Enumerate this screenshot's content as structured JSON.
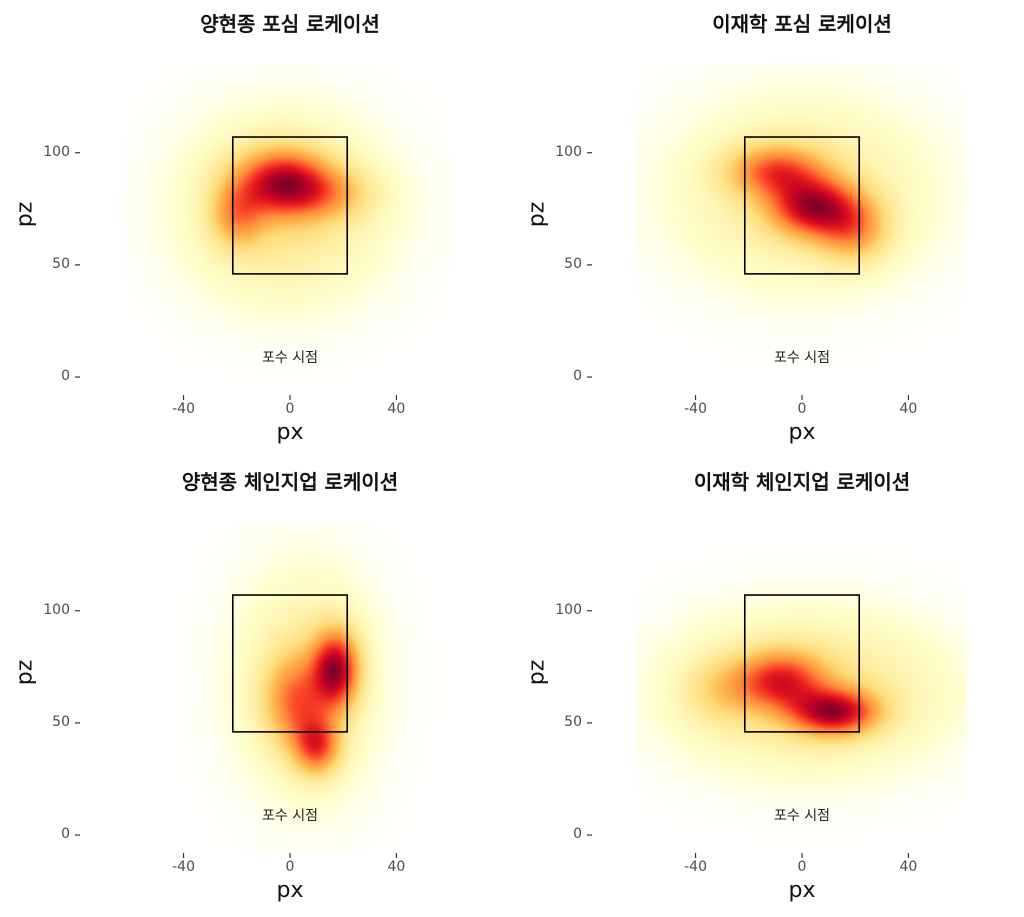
{
  "chart_data": [
    {
      "type": "heatmap",
      "title": "양현종 포심 로케이션",
      "xlabel": "px",
      "ylabel": "pz",
      "xticks": [
        -40,
        0,
        40
      ],
      "yticks": [
        0,
        50,
        100
      ],
      "xlim": [
        -62,
        62
      ],
      "ylim": [
        -8,
        140
      ],
      "annotation": {
        "text": "포수 시점",
        "x": 0,
        "y": 5
      },
      "strike_zone": {
        "x": [
          -21.5,
          21.5
        ],
        "y": [
          46,
          107
        ]
      },
      "colormap": [
        "#ffffcc",
        "#ffeda0",
        "#fed976",
        "#feb24c",
        "#fd8d3c",
        "#fc4e2a",
        "#e31a1c",
        "#bd0026",
        "#800026"
      ],
      "grid": false,
      "density_peaks": [
        {
          "x": -3,
          "y": 87,
          "sx": 12,
          "sy": 10,
          "w": 1
        },
        {
          "x": -20,
          "y": 72,
          "sx": 7,
          "sy": 10,
          "w": 0.5
        },
        {
          "x": 14,
          "y": 82,
          "sx": 12,
          "sy": 8,
          "w": 0.35
        },
        {
          "x": -2,
          "y": 75,
          "sx": 24,
          "sy": 26,
          "w": 0.35
        }
      ]
    },
    {
      "type": "heatmap",
      "title": "이재학 포심 로케이션",
      "xlabel": "px",
      "ylabel": "pz",
      "xticks": [
        -40,
        0,
        40
      ],
      "yticks": [
        0,
        50,
        100
      ],
      "xlim": [
        -62,
        62
      ],
      "ylim": [
        -8,
        140
      ],
      "annotation": {
        "text": "포수 시점",
        "x": 0,
        "y": 5
      },
      "strike_zone": {
        "x": [
          -21.5,
          21.5
        ],
        "y": [
          46,
          107
        ]
      },
      "colormap": [
        "#ffffcc",
        "#ffeda0",
        "#fed976",
        "#feb24c",
        "#fd8d3c",
        "#fc4e2a",
        "#e31a1c",
        "#bd0026",
        "#800026"
      ],
      "grid": false,
      "density_peaks": [
        {
          "x": 4,
          "y": 76,
          "sx": 11,
          "sy": 9,
          "w": 1
        },
        {
          "x": -10,
          "y": 92,
          "sx": 12,
          "sy": 8,
          "w": 0.7
        },
        {
          "x": 19,
          "y": 66,
          "sx": 9,
          "sy": 10,
          "w": 0.55
        },
        {
          "x": 0,
          "y": 82,
          "sx": 30,
          "sy": 26,
          "w": 0.3
        }
      ]
    },
    {
      "type": "heatmap",
      "title": "양현종 체인지업 로케이션",
      "xlabel": "px",
      "ylabel": "pz",
      "xticks": [
        -40,
        0,
        40
      ],
      "yticks": [
        0,
        50,
        100
      ],
      "xlim": [
        -62,
        62
      ],
      "ylim": [
        -8,
        140
      ],
      "annotation": {
        "text": "포수 시점",
        "x": 0,
        "y": 5
      },
      "strike_zone": {
        "x": [
          -21.5,
          21.5
        ],
        "y": [
          46,
          107
        ]
      },
      "colormap": [
        "#ffffcc",
        "#ffeda0",
        "#fed976",
        "#feb24c",
        "#fd8d3c",
        "#fc4e2a",
        "#e31a1c",
        "#bd0026",
        "#800026"
      ],
      "grid": false,
      "density_peaks": [
        {
          "x": 17,
          "y": 74,
          "sx": 6,
          "sy": 12,
          "w": 1
        },
        {
          "x": 10,
          "y": 40,
          "sx": 6,
          "sy": 9,
          "w": 0.7
        },
        {
          "x": 2,
          "y": 60,
          "sx": 8,
          "sy": 14,
          "w": 0.55
        },
        {
          "x": 6,
          "y": 68,
          "sx": 17,
          "sy": 32,
          "w": 0.25
        }
      ]
    },
    {
      "type": "heatmap",
      "title": "이재학 체인지업 로케이션",
      "xlabel": "px",
      "ylabel": "pz",
      "xticks": [
        -40,
        0,
        40
      ],
      "yticks": [
        0,
        50,
        100
      ],
      "xlim": [
        -62,
        62
      ],
      "ylim": [
        -8,
        140
      ],
      "annotation": {
        "text": "포수 시점",
        "x": 0,
        "y": 5
      },
      "strike_zone": {
        "x": [
          -21.5,
          21.5
        ],
        "y": [
          46,
          107
        ]
      },
      "colormap": [
        "#ffffcc",
        "#ffeda0",
        "#fed976",
        "#feb24c",
        "#fd8d3c",
        "#fc4e2a",
        "#e31a1c",
        "#bd0026",
        "#800026"
      ],
      "grid": false,
      "density_peaks": [
        {
          "x": 12,
          "y": 55,
          "sx": 11,
          "sy": 7,
          "w": 1
        },
        {
          "x": -8,
          "y": 69,
          "sx": 11,
          "sy": 9,
          "w": 0.75
        },
        {
          "x": -30,
          "y": 65,
          "sx": 10,
          "sy": 10,
          "w": 0.25
        },
        {
          "x": 2,
          "y": 64,
          "sx": 32,
          "sy": 22,
          "w": 0.35
        }
      ]
    }
  ]
}
